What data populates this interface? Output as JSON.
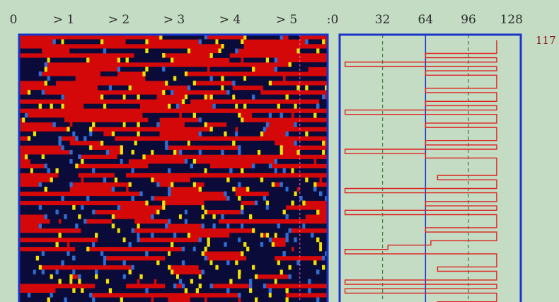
{
  "colors": {
    "background": "#c3dcc3",
    "frame": "#1a33c8",
    "cell_high": "#d40808",
    "cell_low": "#0b0b3a",
    "cell_edge_yellow": "#f2e200",
    "cell_edge_blue": "#2d6fd6",
    "profile_line": "#e02020",
    "grid_dashed": "#1f6b1f",
    "marker_pink": "#ff66cc"
  },
  "chart_data": [
    {
      "type": "heatmap",
      "title": "",
      "xlabel": "",
      "ylabel": "",
      "x_tick_labels": [
        "0",
        "> 1",
        "> 2",
        "> 3",
        "> 4",
        "> 5",
        ":0"
      ],
      "grid": false,
      "color_scale": [
        "#0b0b3a",
        "#2d6fd6",
        "#f2e200",
        "#d40808"
      ],
      "rows": 58,
      "columns": 110,
      "marker_column_fraction": 0.91
    },
    {
      "type": "line",
      "title": "",
      "xlabel": "",
      "ylabel": "",
      "x_tick_labels": [
        "32",
        "64",
        "96",
        "128"
      ],
      "x_ticks": [
        32,
        64,
        96,
        128
      ],
      "xlim": [
        0,
        135
      ],
      "grid": true,
      "reference_lines": [
        {
          "x": 32,
          "style": "dashed"
        },
        {
          "x": 64,
          "style": "solid"
        },
        {
          "x": 96,
          "style": "dashed"
        }
      ],
      "annotation": "117",
      "profile_x": [
        117,
        117,
        117,
        64,
        117,
        4,
        117,
        64,
        117,
        117,
        117,
        64,
        117,
        117,
        64,
        117,
        4,
        117,
        117,
        64,
        117,
        117,
        117,
        64,
        117,
        4,
        64,
        117,
        117,
        117,
        117,
        73,
        117,
        117,
        4,
        117,
        117,
        64,
        117,
        4,
        117,
        117,
        117,
        64,
        117,
        117,
        68,
        36,
        4,
        117,
        117,
        117,
        73,
        117,
        117,
        4,
        117,
        4,
        117,
        117,
        73,
        117
      ]
    }
  ]
}
